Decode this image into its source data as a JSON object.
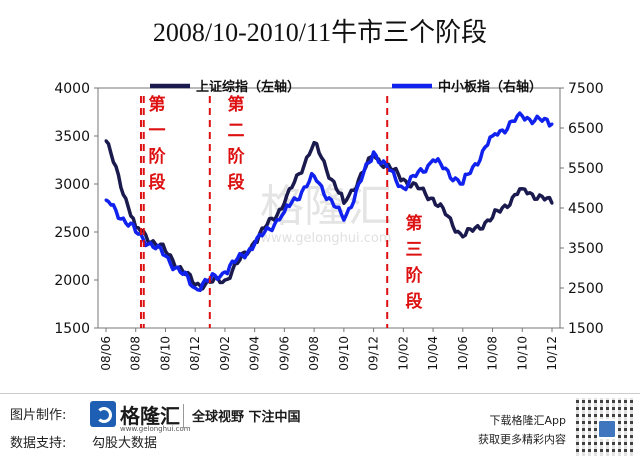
{
  "title": "2008/10-2010/11牛市三个阶段",
  "chart_data": {
    "type": "line",
    "x": [
      "08/06",
      "08/08",
      "08/10",
      "08/12",
      "09/02",
      "09/04",
      "09/06",
      "09/08",
      "09/10",
      "09/12",
      "10/02",
      "10/04",
      "10/06",
      "10/08",
      "10/10",
      "10/12"
    ],
    "series": [
      {
        "name": "上证综指（左轴）",
        "axis": "left",
        "color": "#1a1a4e",
        "values": [
          3450,
          2550,
          2300,
          1950,
          2000,
          2400,
          2800,
          3430,
          2800,
          3300,
          3050,
          2850,
          2450,
          2650,
          2950,
          2800
        ]
      },
      {
        "name": "中小板指（右轴）",
        "axis": "right",
        "color": "#1122ee",
        "values": [
          4700,
          3900,
          3300,
          2500,
          2900,
          3600,
          4400,
          5300,
          4200,
          5900,
          5000,
          5700,
          5100,
          6300,
          6800,
          6600
        ]
      }
    ],
    "y_left": {
      "min": 1500,
      "max": 4000,
      "ticks": [
        "1500",
        "2000",
        "2500",
        "3000",
        "3500",
        "4000"
      ]
    },
    "y_right": {
      "min": 1500,
      "max": 7500,
      "ticks": [
        "1500",
        "2500",
        "3500",
        "4500",
        "5500",
        "6500",
        "7500"
      ]
    },
    "phase_lines_x": [
      9.3,
      9.9,
      24.2,
      62.6
    ],
    "phases": [
      {
        "label": [
          "第",
          "一",
          "阶",
          "段"
        ]
      },
      {
        "label": [
          "第",
          "二",
          "阶",
          "段"
        ]
      },
      {
        "label": [
          "第",
          "三",
          "阶",
          "段"
        ]
      }
    ],
    "phase_line_color": "#dd1111",
    "grid": false,
    "legend_position": "top"
  },
  "watermark": {
    "brand": "格隆汇",
    "url": "www.gelonghui.com"
  },
  "footer": {
    "made_by_label": "图片制作:",
    "logo_text": "格隆汇",
    "logo_sub": "www.gelonghui.com",
    "slogan": "全球视野 下注中国",
    "data_label": "数据支持:",
    "data_source": "勾股大数据",
    "download_label": "下载格隆汇App",
    "download_sub": "获取更多精彩内容"
  }
}
